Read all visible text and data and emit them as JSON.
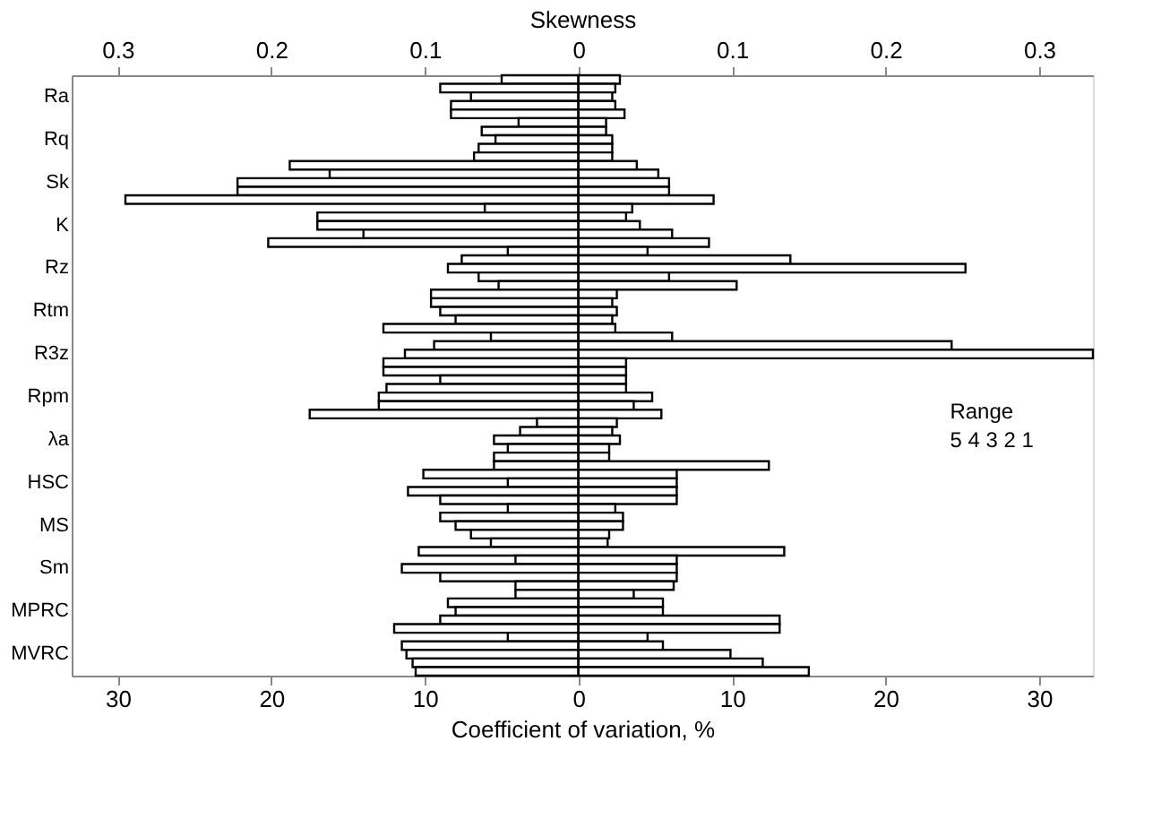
{
  "chart_data": {
    "type": "bar",
    "orientation": "horizontal",
    "xlabel": "Coefficient of variation, %",
    "x2label": "Skewness",
    "categories": [
      null,
      null,
      "Ra",
      null,
      null,
      null,
      null,
      "Rq",
      null,
      null,
      null,
      null,
      "Sk",
      null,
      null,
      null,
      null,
      "K",
      null,
      null,
      null,
      null,
      "Rz",
      null,
      null,
      null,
      null,
      "Rtm",
      null,
      null,
      null,
      null,
      "R3z",
      null,
      null,
      null,
      null,
      "Rpm",
      null,
      null,
      null,
      null,
      "λa",
      null,
      null,
      null,
      null,
      "HSC",
      null,
      null,
      null,
      null,
      "MS",
      null,
      null,
      null,
      null,
      "Sm",
      null,
      null,
      null,
      null,
      "MPRC",
      null,
      null,
      null,
      null,
      "MVRC",
      null,
      null
    ],
    "series": [
      {
        "color": "#000000",
        "values": [
          -5,
          -9,
          -7,
          -8.3,
          -8.3,
          -3.9,
          -6.3,
          -5.4,
          -6.5,
          -6.8,
          -18.8,
          -16.2,
          -22.2,
          -22.2,
          -29.5,
          -6.1,
          -17,
          -17,
          -14,
          -20.2,
          -4.6,
          -7.6,
          -8.5,
          -6.5,
          -5.2,
          -9.6,
          -9.6,
          -9,
          -8,
          -12.7,
          -5.7,
          -9.4,
          -11.3,
          -12.7,
          -12.7,
          -9,
          -12.5,
          -13,
          -13,
          -17.5,
          -2.7,
          -3.8,
          -5.5,
          -4.6,
          -5.5,
          -5.5,
          -10.1,
          -4.6,
          -11.1,
          -9,
          -4.6,
          -9,
          -8,
          -7,
          -5.7,
          -10.4,
          -4.1,
          -11.5,
          -9,
          -4.1,
          -4.1,
          -8.5,
          -8,
          -9,
          -12,
          -4.6,
          -11.5,
          -11.2,
          -10.8,
          -10.6
        ]
      },
      {
        "color": "#000000",
        "values": [
          2.7,
          2.4,
          2.2,
          2.4,
          3,
          1.8,
          1.8,
          2.2,
          2.2,
          2.2,
          3.8,
          5.2,
          5.9,
          5.9,
          8.8,
          3.5,
          3.1,
          4,
          6.1,
          8.5,
          4.5,
          13.8,
          25.2,
          5.9,
          10.3,
          2.5,
          2.2,
          2.5,
          2.2,
          2.4,
          6.1,
          24.3,
          33.5,
          3.1,
          3.1,
          3.1,
          3.1,
          4.8,
          3.6,
          5.4,
          2.5,
          2.2,
          2.7,
          2,
          2,
          12.4,
          6.4,
          6.4,
          6.4,
          6.4,
          2.4,
          2.9,
          2.9,
          2,
          1.9,
          13.4,
          6.4,
          6.4,
          6.4,
          6.2,
          3.6,
          5.5,
          5.5,
          13.1,
          13.1,
          4.5,
          5.5,
          9.9,
          12,
          15
        ]
      }
    ],
    "xlim": [
      -33,
      33.5
    ],
    "xticks": [
      {
        "value": -30,
        "label": "30"
      },
      {
        "value": -20,
        "label": "20"
      },
      {
        "value": -10,
        "label": "10"
      },
      0,
      10,
      20,
      30
    ],
    "x2lim": [
      -0.33,
      0.335
    ],
    "x2ticks": [
      {
        "value": -0.3,
        "label": "0.3"
      },
      {
        "value": -0.2,
        "label": "0.2"
      },
      {
        "value": -0.1,
        "label": "0.1"
      },
      0,
      0.1,
      0.2,
      0.3
    ],
    "ref_lines": [
      {
        "axis": "x",
        "value": 0
      }
    ],
    "annotations": [
      "Range",
      "5  4  3  2  1"
    ],
    "stacked": true,
    "grid": false,
    "legend": false
  }
}
